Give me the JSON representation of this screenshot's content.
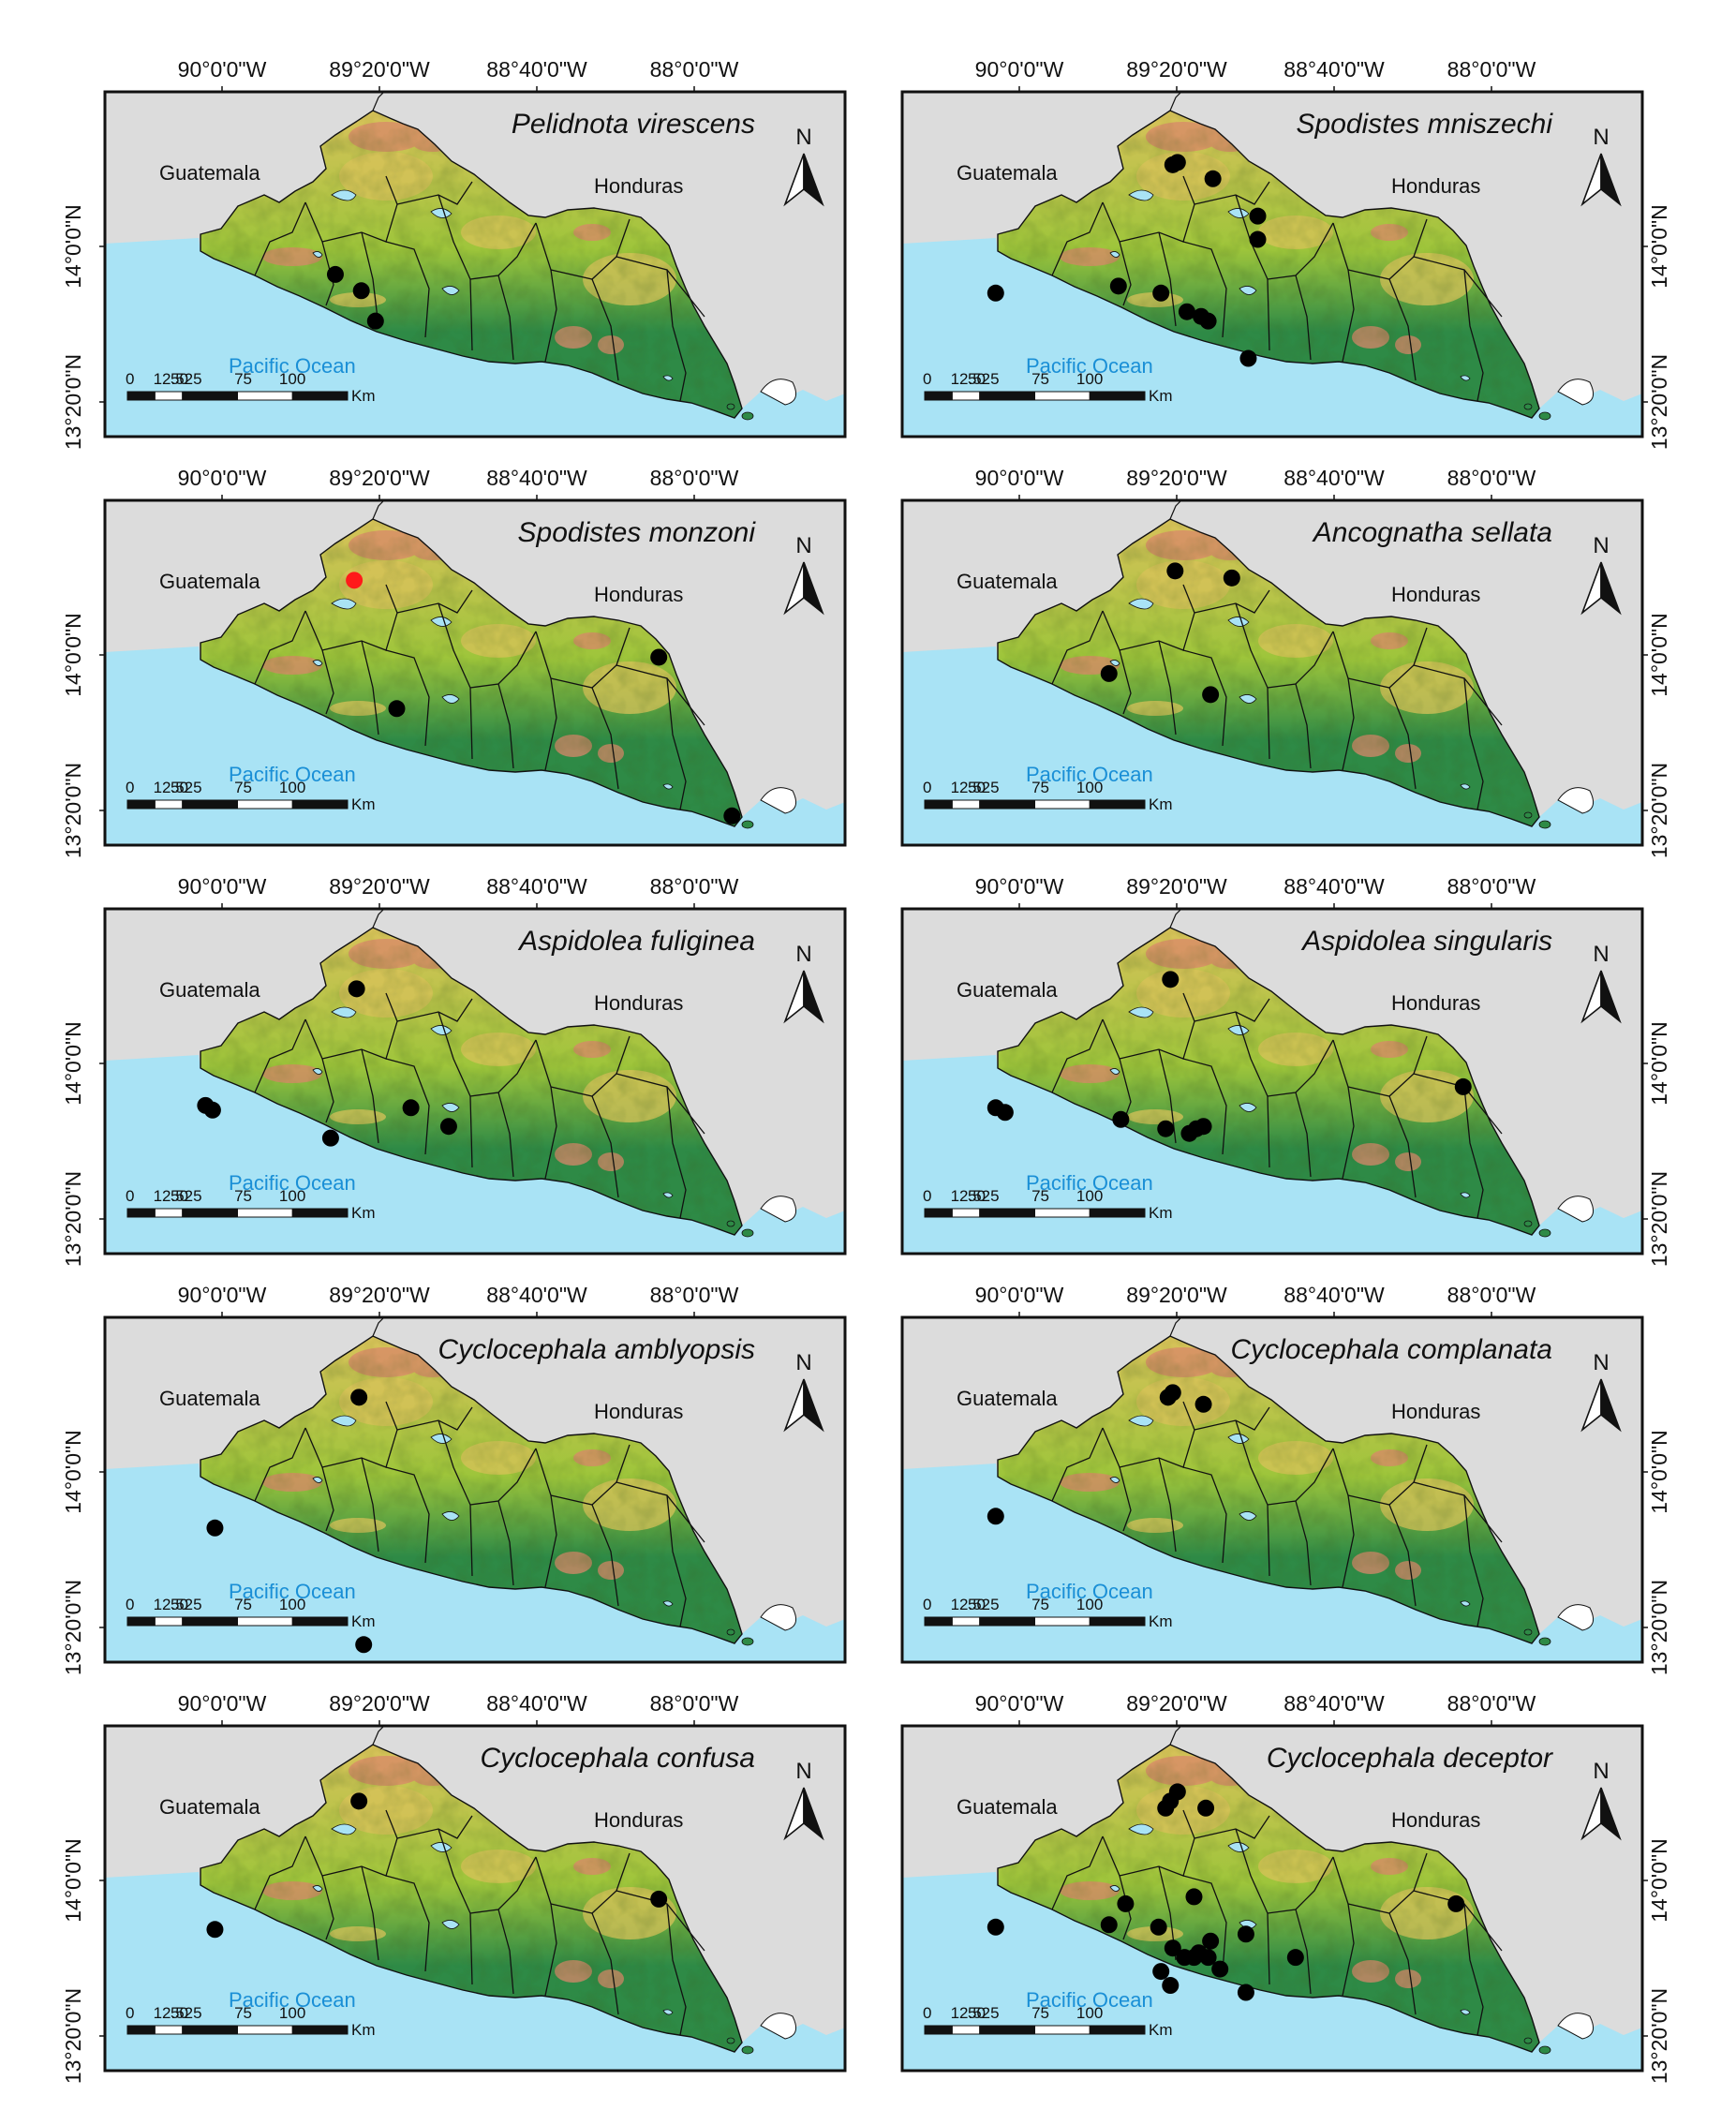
{
  "figure": {
    "colors": {
      "land_outside": "#dcdcdc",
      "ocean": "#a9e3f5",
      "terrain_low": "#2e8a46",
      "terrain_mid": "#9ec53b",
      "terrain_high": "#d8c25a",
      "terrain_peak": "#d9876a",
      "border": "#111111",
      "frame": "#111111",
      "record_marker": "#000000",
      "highlight_marker": "#ff1a1a",
      "ocean_label": "#1a8fd6"
    },
    "lon_ticks": [
      "90°0'0\"W",
      "89°20'0\"W",
      "88°40'0\"W",
      "88°0'0\"W"
    ],
    "lat_ticks": [
      "14°0'0\"N",
      "13°20'0\"N"
    ],
    "north_label": "N",
    "country_labels": {
      "guatemala": "Guatemala",
      "honduras": "Honduras",
      "ocean": "Pacific Ocean"
    },
    "scale_bar": {
      "labels": [
        "0",
        "12.525",
        "50",
        "75",
        "100"
      ],
      "unit": "Km"
    },
    "panels": [
      {
        "species": "Pelidnota virescens",
        "points": [
          [
            -89.52,
            13.88
          ],
          [
            -89.41,
            13.81
          ],
          [
            -89.35,
            13.68
          ]
        ]
      },
      {
        "species": "Spodistes mniszechi",
        "points": [
          [
            -89.33,
            14.36
          ],
          [
            -89.35,
            14.35
          ],
          [
            -89.18,
            14.29
          ],
          [
            -88.99,
            14.13
          ],
          [
            -88.99,
            14.03
          ],
          [
            -89.58,
            13.83
          ],
          [
            -89.4,
            13.8
          ],
          [
            -89.29,
            13.72
          ],
          [
            -89.23,
            13.7
          ],
          [
            -89.2,
            13.68
          ],
          [
            -89.03,
            13.52
          ],
          [
            -90.1,
            13.8
          ]
        ]
      },
      {
        "species": "Spodistes monzoni",
        "points": [
          [
            -89.44,
            14.32
          ],
          [
            -89.26,
            13.77
          ],
          [
            -88.15,
            13.99
          ],
          [
            -87.84,
            13.31
          ]
        ],
        "highlight": [
          0
        ]
      },
      {
        "species": "Ancognatha sellata",
        "points": [
          [
            -89.34,
            14.36
          ],
          [
            -89.1,
            14.33
          ],
          [
            -89.62,
            13.92
          ],
          [
            -89.19,
            13.83
          ]
        ]
      },
      {
        "species": "Aspidolea fuliginea",
        "points": [
          [
            -89.43,
            14.32
          ],
          [
            -90.07,
            13.82
          ],
          [
            -90.04,
            13.8
          ],
          [
            -89.2,
            13.81
          ],
          [
            -89.04,
            13.73
          ],
          [
            -89.54,
            13.68
          ]
        ]
      },
      {
        "species": "Aspidolea singularis",
        "points": [
          [
            -89.36,
            14.36
          ],
          [
            -90.1,
            13.81
          ],
          [
            -90.06,
            13.79
          ],
          [
            -89.57,
            13.76
          ],
          [
            -89.38,
            13.72
          ],
          [
            -89.28,
            13.7
          ],
          [
            -89.25,
            13.72
          ],
          [
            -89.22,
            13.73
          ],
          [
            -88.12,
            13.9
          ]
        ]
      },
      {
        "species": "Cyclocephala amblyopsis",
        "points": [
          [
            -89.42,
            14.32
          ],
          [
            -90.03,
            13.76
          ],
          [
            -89.4,
            13.26
          ]
        ]
      },
      {
        "species": "Cyclocephala complanata",
        "points": [
          [
            -89.35,
            14.34
          ],
          [
            -89.37,
            14.32
          ],
          [
            -89.22,
            14.29
          ],
          [
            -90.1,
            13.81
          ]
        ]
      },
      {
        "species": "Cyclocephala confusa",
        "points": [
          [
            -89.42,
            14.34
          ],
          [
            -88.15,
            13.92
          ],
          [
            -90.03,
            13.79
          ]
        ]
      },
      {
        "species": "Cyclocephala deceptor",
        "points": [
          [
            -89.36,
            14.34
          ],
          [
            -89.38,
            14.31
          ],
          [
            -89.33,
            14.38
          ],
          [
            -89.21,
            14.31
          ],
          [
            -89.26,
            13.93
          ],
          [
            -89.55,
            13.9
          ],
          [
            -89.62,
            13.81
          ],
          [
            -89.41,
            13.8
          ],
          [
            -90.1,
            13.8
          ],
          [
            -89.04,
            13.77
          ],
          [
            -89.19,
            13.74
          ],
          [
            -89.35,
            13.71
          ],
          [
            -89.3,
            13.67
          ],
          [
            -89.26,
            13.67
          ],
          [
            -89.24,
            13.69
          ],
          [
            -89.2,
            13.67
          ],
          [
            -89.4,
            13.61
          ],
          [
            -88.83,
            13.67
          ],
          [
            -89.15,
            13.62
          ],
          [
            -89.36,
            13.55
          ],
          [
            -89.04,
            13.52
          ],
          [
            -88.15,
            13.9
          ]
        ]
      }
    ]
  }
}
